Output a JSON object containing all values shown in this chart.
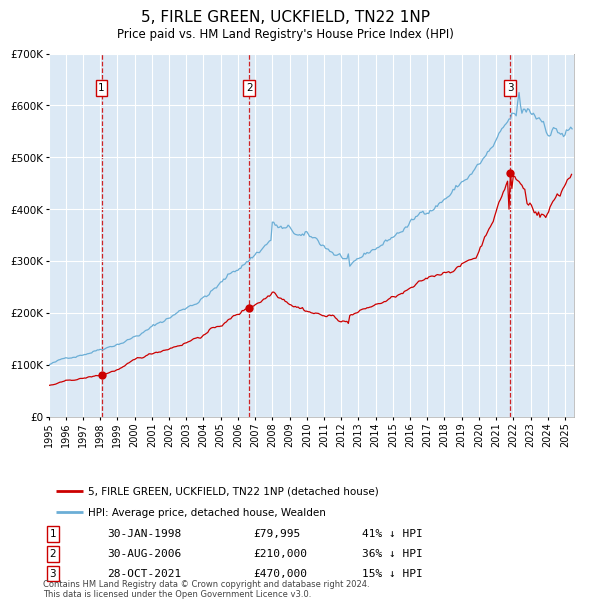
{
  "title": "5, FIRLE GREEN, UCKFIELD, TN22 1NP",
  "subtitle": "Price paid vs. HM Land Registry's House Price Index (HPI)",
  "title_fontsize": 11,
  "subtitle_fontsize": 9,
  "ylim": [
    0,
    700000
  ],
  "yticks": [
    0,
    100000,
    200000,
    300000,
    400000,
    500000,
    600000,
    700000
  ],
  "ytick_labels": [
    "£0",
    "£100K",
    "£200K",
    "£300K",
    "£400K",
    "£500K",
    "£600K",
    "£700K"
  ],
  "background_color": "#ffffff",
  "plot_bg_color": "#dce9f5",
  "grid_color": "#ffffff",
  "sale_dates": [
    1998.08,
    2006.66,
    2021.83
  ],
  "sale_prices": [
    79995,
    210000,
    470000
  ],
  "sale_labels": [
    "1",
    "2",
    "3"
  ],
  "vline_color": "#cc0000",
  "dot_color": "#cc0000",
  "hpi_line_color": "#6baed6",
  "price_line_color": "#cc0000",
  "legend_entries": [
    "5, FIRLE GREEN, UCKFIELD, TN22 1NP (detached house)",
    "HPI: Average price, detached house, Wealden"
  ],
  "table_rows": [
    [
      "1",
      "30-JAN-1998",
      "£79,995",
      "41% ↓ HPI"
    ],
    [
      "2",
      "30-AUG-2006",
      "£210,000",
      "36% ↓ HPI"
    ],
    [
      "3",
      "28-OCT-2021",
      "£470,000",
      "15% ↓ HPI"
    ]
  ],
  "footer": "Contains HM Land Registry data © Crown copyright and database right 2024.\nThis data is licensed under the Open Government Licence v3.0.",
  "xmin": 1995.0,
  "xmax": 2025.5,
  "xticks": [
    1995,
    1996,
    1997,
    1998,
    1999,
    2000,
    2001,
    2002,
    2003,
    2004,
    2005,
    2006,
    2007,
    2008,
    2009,
    2010,
    2011,
    2012,
    2013,
    2014,
    2015,
    2016,
    2017,
    2018,
    2019,
    2020,
    2021,
    2022,
    2023,
    2024,
    2025
  ]
}
